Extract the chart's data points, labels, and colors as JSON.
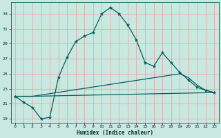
{
  "title": "",
  "xlabel": "Humidex (Indice chaleur)",
  "background_color": "#c8e8e0",
  "grid_color": "#e8a8a8",
  "line_color": "#006060",
  "xlim": [
    -0.5,
    23.5
  ],
  "ylim": [
    18.5,
    34.5
  ],
  "xticks": [
    0,
    1,
    2,
    3,
    4,
    5,
    6,
    7,
    8,
    9,
    10,
    11,
    12,
    13,
    14,
    15,
    16,
    17,
    18,
    19,
    20,
    21,
    22,
    23
  ],
  "yticks": [
    19,
    21,
    23,
    25,
    27,
    29,
    31,
    33
  ],
  "line1_x": [
    0,
    1,
    2,
    3,
    4,
    5,
    6,
    7,
    8,
    9,
    10,
    11,
    12,
    13,
    14,
    15,
    16,
    17,
    18,
    19,
    20,
    21,
    22,
    23
  ],
  "line1_y": [
    22.0,
    21.2,
    20.5,
    19.0,
    19.2,
    24.5,
    27.2,
    29.3,
    30.0,
    30.5,
    33.0,
    33.8,
    33.0,
    31.5,
    29.5,
    26.5,
    26.0,
    27.8,
    26.5,
    25.2,
    24.2,
    23.2,
    22.8,
    22.5
  ],
  "line2_x": [
    0,
    2,
    23
  ],
  "line2_y": [
    22.0,
    22.0,
    22.5
  ],
  "line3_x": [
    0,
    2,
    19,
    20,
    21,
    22,
    23
  ],
  "line3_y": [
    22.0,
    22.0,
    25.0,
    24.5,
    23.5,
    22.8,
    22.5
  ]
}
